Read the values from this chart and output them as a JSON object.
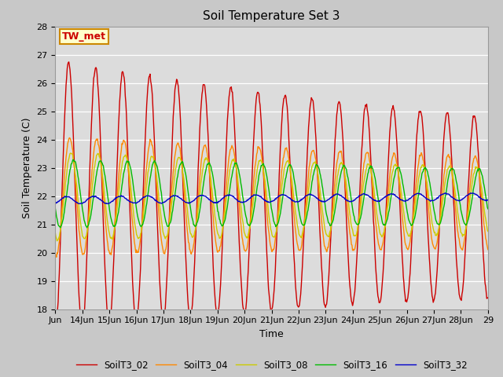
{
  "title": "Soil Temperature Set 3",
  "xlabel": "Time",
  "ylabel": "Soil Temperature (C)",
  "ylim": [
    18.0,
    28.0
  ],
  "yticks": [
    18.0,
    19.0,
    20.0,
    21.0,
    22.0,
    23.0,
    24.0,
    25.0,
    26.0,
    27.0,
    28.0
  ],
  "xtick_labels": [
    "Jun",
    "14Jun",
    "15Jun",
    "16Jun",
    "17Jun",
    "18Jun",
    "19Jun",
    "20Jun",
    "21Jun",
    "22Jun",
    "23Jun",
    "24Jun",
    "25Jun",
    "26Jun",
    "27Jun",
    "28Jun",
    "29"
  ],
  "legend_labels": [
    "SoilT3_02",
    "SoilT3_04",
    "SoilT3_08",
    "SoilT3_16",
    "SoilT3_32"
  ],
  "line_colors": [
    "#cc0000",
    "#ff8800",
    "#cccc00",
    "#00bb00",
    "#0000cc"
  ],
  "annotation_text": "TW_met",
  "annotation_bg": "#ffffcc",
  "annotation_border": "#cc8800",
  "fig_bg": "#c8c8c8",
  "plot_bg": "#dcdcdc",
  "title_fontsize": 11,
  "axis_fontsize": 9,
  "tick_fontsize": 8,
  "n_days": 16,
  "points_per_day": 48
}
